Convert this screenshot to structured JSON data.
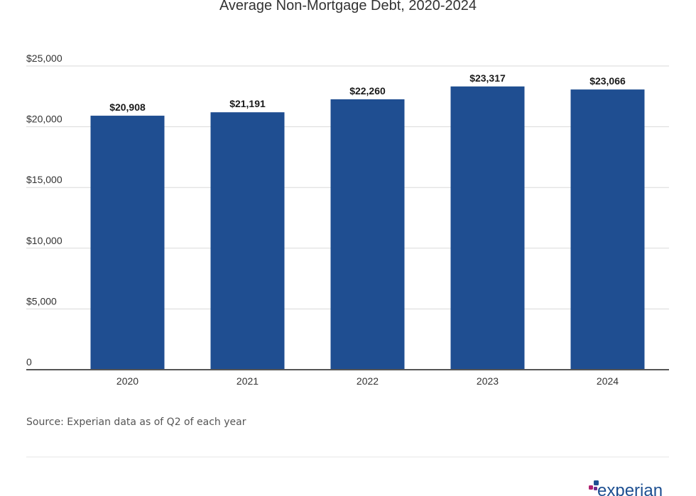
{
  "colors": {
    "bar": "#1f4e91",
    "grid": "#d9d9d9",
    "baseline": "#555555",
    "divider": "#e6e6e6",
    "logo_text": "#1d4f91",
    "logo_dot_pink": "#b0216f",
    "logo_dot_purple": "#6e2c8e",
    "logo_dot_blue": "#1d4f91"
  },
  "chart_data": {
    "type": "bar",
    "title": "Average Non-Mortgage Debt, 2020-2024",
    "categories": [
      "2020",
      "2021",
      "2022",
      "2023",
      "2024"
    ],
    "values": [
      20908,
      21191,
      22260,
      23317,
      23066
    ],
    "value_labels": [
      "$20,908",
      "$21,191",
      "$22,260",
      "$23,317",
      "$23,066"
    ],
    "y_ticks": [
      0,
      5000,
      10000,
      15000,
      20000,
      25000
    ],
    "y_tick_labels": [
      "0",
      "$5,000",
      "$10,000",
      "$15,000",
      "$20,000",
      "$25,000"
    ],
    "ylim": [
      0,
      25000
    ],
    "xlabel": "",
    "ylabel": "",
    "grid": true,
    "legend": "none"
  },
  "footer": {
    "source": "Source: Experian data as of Q2 of each year",
    "logo_text": "experian"
  }
}
